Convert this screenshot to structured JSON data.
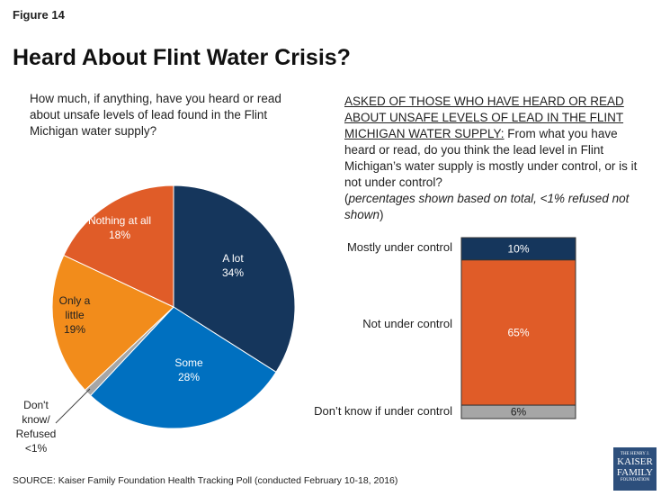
{
  "figure_label": "Figure 14",
  "title": "Heard About Flint Water Crisis?",
  "left_question": "How much, if anything, have you heard or read about unsafe levels of lead found in the Flint Michigan water supply?",
  "right_question": {
    "underlined": "ASKED OF THOSE WHO HAVE HEARD OR READ ABOUT UNSAFE LEVELS OF LEAD IN THE FLINT MICHIGAN WATER SUPPLY:",
    "text": " From what you have heard or read, do you think the lead level in Flint Michigan’s water supply is mostly under control, or is it not under control?",
    "note_open": "(",
    "note_italic": "percentages shown based on total, <1% refused not shown",
    "note_close": ")"
  },
  "source": "SOURCE: Kaiser Family Foundation Health Tracking Poll (conducted February 10-18, 2016)",
  "logo": {
    "line1": "THE HENRY J.",
    "line2": "KAISER",
    "line3": "FAMILY",
    "line4": "FOUNDATION"
  },
  "chart_data": [
    {
      "type": "pie",
      "slices": [
        {
          "label": "A lot",
          "value": 34,
          "display": "34%",
          "color": "#15365c"
        },
        {
          "label": "Some",
          "value": 28,
          "display": "28%",
          "color": "#0070c0"
        },
        {
          "label": "Don't know/ Refused",
          "value": 1,
          "display": "<1%",
          "color": "#a6a6a6"
        },
        {
          "label": "Only a little",
          "value": 19,
          "display": "19%",
          "color": "#f28c1b"
        },
        {
          "label": "Nothing at all",
          "value": 18,
          "display": "18%",
          "color": "#e05c28"
        }
      ]
    },
    {
      "type": "bar",
      "stacked": true,
      "orientation": "vertical",
      "categories": [
        "Mostly under control",
        "Not under control",
        "Don’t know if under control"
      ],
      "values": [
        10,
        65,
        6
      ],
      "display": [
        "10%",
        "65%",
        "6%"
      ],
      "colors": [
        "#15365c",
        "#e05c28",
        "#a6a6a6"
      ]
    }
  ]
}
